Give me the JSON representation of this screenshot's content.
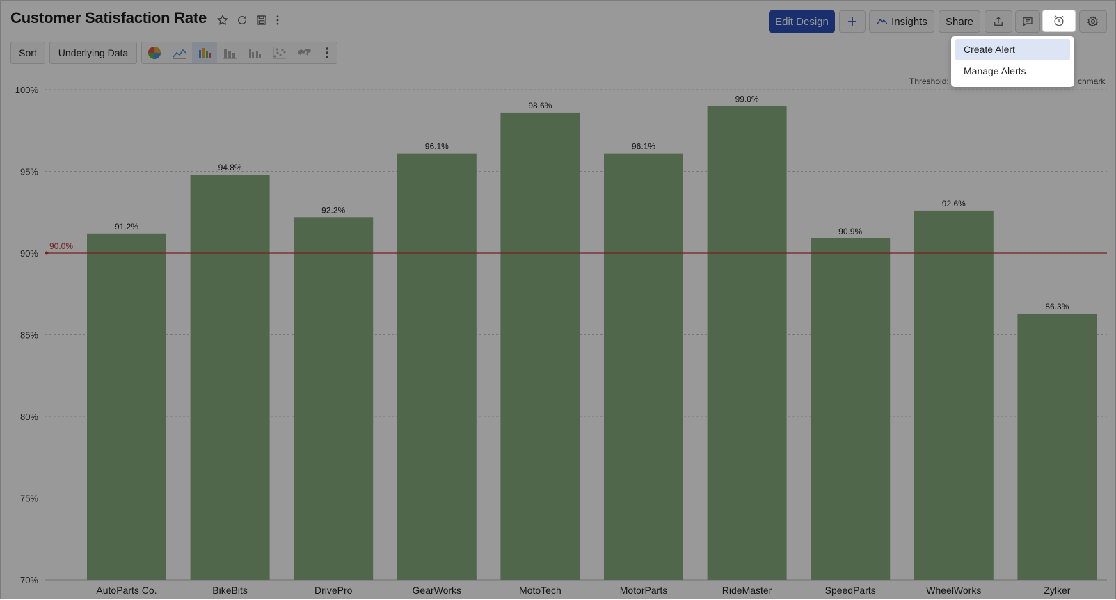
{
  "header": {
    "title": "Customer Satisfaction Rate",
    "edit_design": "Edit Design",
    "insights": "Insights",
    "share": "Share"
  },
  "toolbar": {
    "sort": "Sort",
    "underlying_data": "Underlying Data",
    "chart_types": [
      "pie",
      "line",
      "bar",
      "stacked-bar",
      "grouped-bar",
      "scatter",
      "map"
    ],
    "selected_chart_type": "bar"
  },
  "alerts_menu": {
    "items": [
      "Create Alert",
      "Manage Alerts"
    ],
    "highlighted": "Create Alert"
  },
  "legend": {
    "threshold": "Threshold",
    "benchmark_visible": "chmark"
  },
  "colors": {
    "bar": "#86ac7d",
    "threshold_line": "#c23a3a",
    "primary_button": "#2c4fb8"
  },
  "chart_data": {
    "type": "bar",
    "categories": [
      "AutoParts Co.",
      "BikeBits",
      "DrivePro",
      "GearWorks",
      "MotoTech",
      "MotorParts",
      "RideMaster",
      "SpeedParts",
      "WheelWorks",
      "Zylker"
    ],
    "values": [
      91.2,
      94.8,
      92.2,
      96.1,
      98.6,
      96.1,
      99.0,
      90.9,
      92.6,
      86.3
    ],
    "data_labels": [
      "91.2%",
      "94.8%",
      "92.2%",
      "96.1%",
      "98.6%",
      "96.1%",
      "99.0%",
      "90.9%",
      "92.6%",
      "86.3%"
    ],
    "ylim": [
      70,
      100
    ],
    "yticks": [
      70,
      75,
      80,
      85,
      90,
      95,
      100
    ],
    "ytick_labels": [
      "70%",
      "75%",
      "80%",
      "85%",
      "90%",
      "95%",
      "100%"
    ],
    "threshold": 90.0,
    "threshold_label": "90.0%",
    "grid": true,
    "title": "Customer Satisfaction Rate",
    "xlabel": "",
    "ylabel": ""
  }
}
